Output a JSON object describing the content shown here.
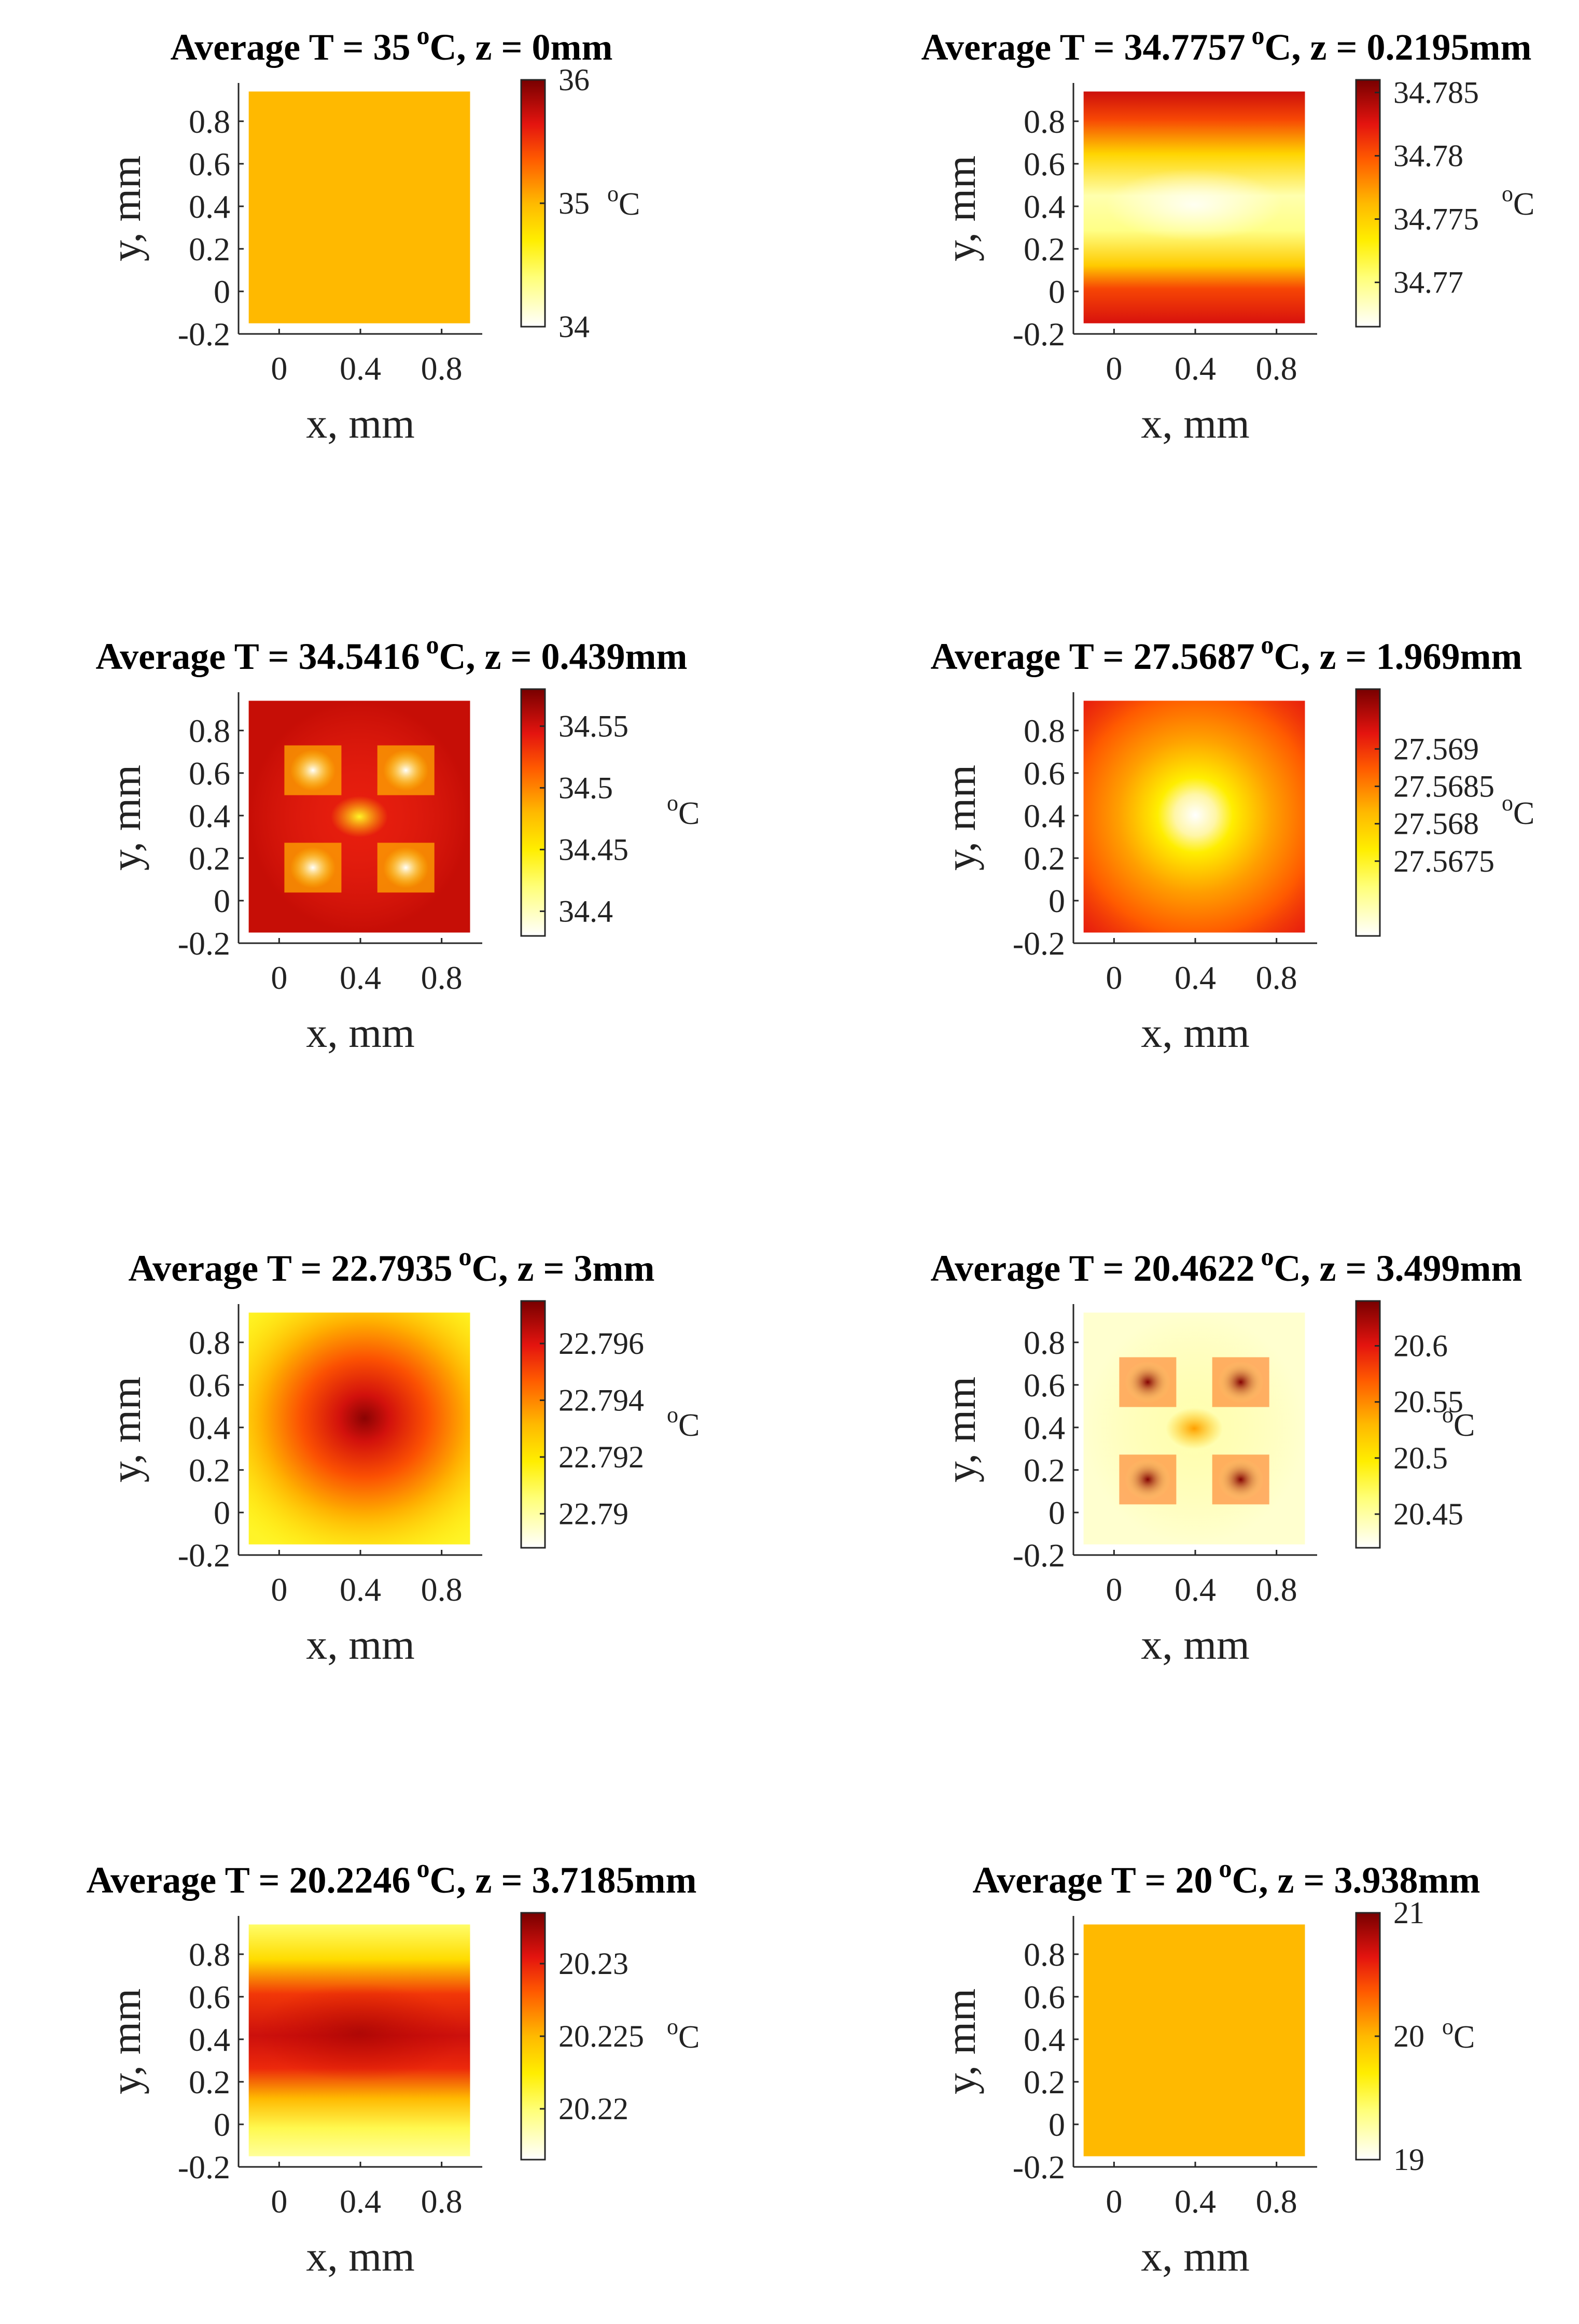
{
  "chart_data": [
    {
      "type": "heatmap",
      "title_prefix": "Average T = ",
      "avg_temp": "35",
      "deg_sup": "o",
      "title_unit": "C, z = ",
      "z_label": "0mm",
      "xlabel": "x, mm",
      "ylabel": "y, mm",
      "xticks": [
        "0",
        "0.4",
        "0.8"
      ],
      "yticks": [
        "0.8",
        "0.6",
        "0.4",
        "0.2",
        "0",
        "-0.2"
      ],
      "xlim": [
        -0.2,
        1.0
      ],
      "ylim": [
        -0.2,
        0.98
      ],
      "data_extent": [
        -0.15,
        0.94
      ],
      "colorbar_range": [
        34,
        36
      ],
      "colorbar_ticks": [
        "36",
        "35",
        "34"
      ],
      "colorbar_tick_values": [
        36,
        35,
        34
      ],
      "colorbar_unit_sup": "o",
      "colorbar_unit": "C",
      "pattern": "uniform",
      "field_fraction": 0.5
    },
    {
      "type": "heatmap",
      "title_prefix": "Average T = ",
      "avg_temp": "34.7757",
      "deg_sup": "o",
      "title_unit": "C, z = ",
      "z_label": "0.2195mm",
      "xlabel": "x, mm",
      "ylabel": "y, mm",
      "xticks": [
        "0",
        "0.4",
        "0.8"
      ],
      "yticks": [
        "0.8",
        "0.6",
        "0.4",
        "0.2",
        "0",
        "-0.2"
      ],
      "xlim": [
        -0.2,
        1.0
      ],
      "ylim": [
        -0.2,
        0.98
      ],
      "data_extent": [
        -0.15,
        0.94
      ],
      "colorbar_range": [
        34.7665,
        34.786
      ],
      "colorbar_ticks": [
        "34.785",
        "34.78",
        "34.775",
        "34.77"
      ],
      "colorbar_tick_values": [
        34.785,
        34.78,
        34.775,
        34.77
      ],
      "colorbar_unit_sup": "o",
      "colorbar_unit": "C",
      "pattern": "band"
    },
    {
      "type": "heatmap",
      "title_prefix": "Average T = ",
      "avg_temp": "34.5416",
      "deg_sup": "o",
      "title_unit": "C, z = ",
      "z_label": "0.439mm",
      "xlabel": "x, mm",
      "ylabel": "y, mm",
      "xticks": [
        "0",
        "0.4",
        "0.8"
      ],
      "yticks": [
        "0.8",
        "0.6",
        "0.4",
        "0.2",
        "0",
        "-0.2"
      ],
      "xlim": [
        -0.2,
        1.0
      ],
      "ylim": [
        -0.2,
        0.98
      ],
      "data_extent": [
        -0.15,
        0.94
      ],
      "colorbar_range": [
        34.38,
        34.58
      ],
      "colorbar_ticks": [
        "34.55",
        "34.5",
        "34.45",
        "34.4"
      ],
      "colorbar_tick_values": [
        34.55,
        34.5,
        34.45,
        34.4
      ],
      "colorbar_unit_sup": "o",
      "colorbar_unit": "C",
      "pattern": "four_cold"
    },
    {
      "type": "heatmap",
      "title_prefix": "Average T = ",
      "avg_temp": "27.5687",
      "deg_sup": "o",
      "title_unit": "C, z = ",
      "z_label": "1.969mm",
      "xlabel": "x, mm",
      "ylabel": "y, mm",
      "xticks": [
        "0",
        "0.4",
        "0.8"
      ],
      "yticks": [
        "0.8",
        "0.6",
        "0.4",
        "0.2",
        "0",
        "-0.2"
      ],
      "xlim": [
        -0.2,
        1.0
      ],
      "ylim": [
        -0.2,
        0.98
      ],
      "data_extent": [
        -0.15,
        0.94
      ],
      "colorbar_range": [
        27.5665,
        27.5698
      ],
      "colorbar_ticks": [
        "27.569",
        "27.5685",
        "27.568",
        "27.5675"
      ],
      "colorbar_tick_values": [
        27.569,
        27.5685,
        27.568,
        27.5675
      ],
      "colorbar_unit_sup": "o",
      "colorbar_unit": "C",
      "pattern": "center_cold"
    },
    {
      "type": "heatmap",
      "title_prefix": "Average T = ",
      "avg_temp": "22.7935",
      "deg_sup": "o",
      "title_unit": "C, z = ",
      "z_label": "3mm",
      "xlabel": "x, mm",
      "ylabel": "y, mm",
      "xticks": [
        "0",
        "0.4",
        "0.8"
      ],
      "yticks": [
        "0.8",
        "0.6",
        "0.4",
        "0.2",
        "0",
        "-0.2"
      ],
      "xlim": [
        -0.2,
        1.0
      ],
      "ylim": [
        -0.2,
        0.98
      ],
      "data_extent": [
        -0.15,
        0.94
      ],
      "colorbar_range": [
        22.7888,
        22.7975
      ],
      "colorbar_ticks": [
        "22.796",
        "22.794",
        "22.792",
        "22.79"
      ],
      "colorbar_tick_values": [
        22.796,
        22.794,
        22.792,
        22.79
      ],
      "colorbar_unit_sup": "o",
      "colorbar_unit": "C",
      "pattern": "center_hot"
    },
    {
      "type": "heatmap",
      "title_prefix": "Average T = ",
      "avg_temp": "20.4622",
      "deg_sup": "o",
      "title_unit": "C, z = ",
      "z_label": "3.499mm",
      "xlabel": "x, mm",
      "ylabel": "y, mm",
      "xticks": [
        "0",
        "0.4",
        "0.8"
      ],
      "yticks": [
        "0.8",
        "0.6",
        "0.4",
        "0.2",
        "0",
        "-0.2"
      ],
      "xlim": [
        -0.2,
        1.0
      ],
      "ylim": [
        -0.2,
        0.98
      ],
      "data_extent": [
        -0.15,
        0.94
      ],
      "colorbar_range": [
        20.42,
        20.64
      ],
      "colorbar_ticks": [
        "20.6",
        "20.55",
        "20.5",
        "20.45"
      ],
      "colorbar_tick_values": [
        20.6,
        20.55,
        20.5,
        20.45
      ],
      "colorbar_unit_sup": "o",
      "colorbar_unit": "C",
      "pattern": "four_hot"
    },
    {
      "type": "heatmap",
      "title_prefix": "Average T = ",
      "avg_temp": "20.2246",
      "deg_sup": "o",
      "title_unit": "C, z = ",
      "z_label": "3.7185mm",
      "xlabel": "x, mm",
      "ylabel": "y, mm",
      "xticks": [
        "0",
        "0.4",
        "0.8"
      ],
      "yticks": [
        "0.8",
        "0.6",
        "0.4",
        "0.2",
        "0",
        "-0.2"
      ],
      "xlim": [
        -0.2,
        1.0
      ],
      "ylim": [
        -0.2,
        0.98
      ],
      "data_extent": [
        -0.15,
        0.94
      ],
      "colorbar_range": [
        20.2165,
        20.2335
      ],
      "colorbar_ticks": [
        "20.23",
        "20.225",
        "20.22"
      ],
      "colorbar_tick_values": [
        20.23,
        20.225,
        20.22
      ],
      "colorbar_unit_sup": "o",
      "colorbar_unit": "C",
      "pattern": "band_hot"
    },
    {
      "type": "heatmap",
      "title_prefix": "Average T = ",
      "avg_temp": "20",
      "deg_sup": "o",
      "title_unit": "C, z = ",
      "z_label": "3.938mm",
      "xlabel": "x, mm",
      "ylabel": "y, mm",
      "xticks": [
        "0",
        "0.4",
        "0.8"
      ],
      "yticks": [
        "0.8",
        "0.6",
        "0.4",
        "0.2",
        "0",
        "-0.2"
      ],
      "xlim": [
        -0.2,
        1.0
      ],
      "ylim": [
        -0.2,
        0.98
      ],
      "data_extent": [
        -0.15,
        0.94
      ],
      "colorbar_range": [
        19,
        21
      ],
      "colorbar_ticks": [
        "21",
        "20",
        "19"
      ],
      "colorbar_tick_values": [
        21,
        20,
        19
      ],
      "colorbar_unit_sup": "o",
      "colorbar_unit": "C",
      "pattern": "uniform",
      "field_fraction": 0.5
    }
  ]
}
